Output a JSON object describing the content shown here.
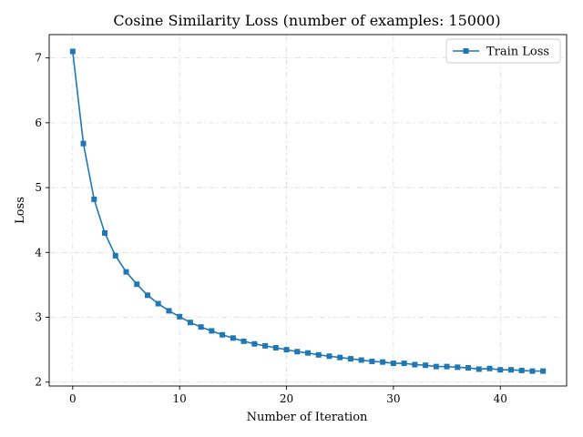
{
  "chart_data": {
    "type": "line",
    "title": "Cosine Similarity Loss (number of examples: 15000)",
    "xlabel": "Number of Iteration",
    "ylabel": "Loss",
    "xlim": [
      -2.2,
      46.2
    ],
    "ylim": [
      1.94,
      7.36
    ],
    "xticks": [
      0,
      10,
      20,
      30,
      40
    ],
    "yticks": [
      2,
      3,
      4,
      5,
      6,
      7
    ],
    "grid": true,
    "legend_position": "top-right",
    "series": [
      {
        "name": "Train Loss",
        "color": "#1f77b4",
        "marker": "square",
        "x": [
          0,
          1,
          2,
          3,
          4,
          5,
          6,
          7,
          8,
          9,
          10,
          11,
          12,
          13,
          14,
          15,
          16,
          17,
          18,
          19,
          20,
          21,
          22,
          23,
          24,
          25,
          26,
          27,
          28,
          29,
          30,
          31,
          32,
          33,
          34,
          35,
          36,
          37,
          38,
          39,
          40,
          41,
          42,
          43,
          44
        ],
        "values": [
          7.1,
          5.68,
          4.82,
          4.3,
          3.95,
          3.7,
          3.51,
          3.34,
          3.21,
          3.1,
          3.01,
          2.92,
          2.85,
          2.79,
          2.73,
          2.68,
          2.63,
          2.59,
          2.56,
          2.53,
          2.5,
          2.47,
          2.45,
          2.42,
          2.4,
          2.38,
          2.36,
          2.34,
          2.32,
          2.31,
          2.29,
          2.29,
          2.27,
          2.26,
          2.24,
          2.24,
          2.23,
          2.22,
          2.2,
          2.21,
          2.19,
          2.19,
          2.18,
          2.17,
          2.17
        ]
      }
    ]
  }
}
